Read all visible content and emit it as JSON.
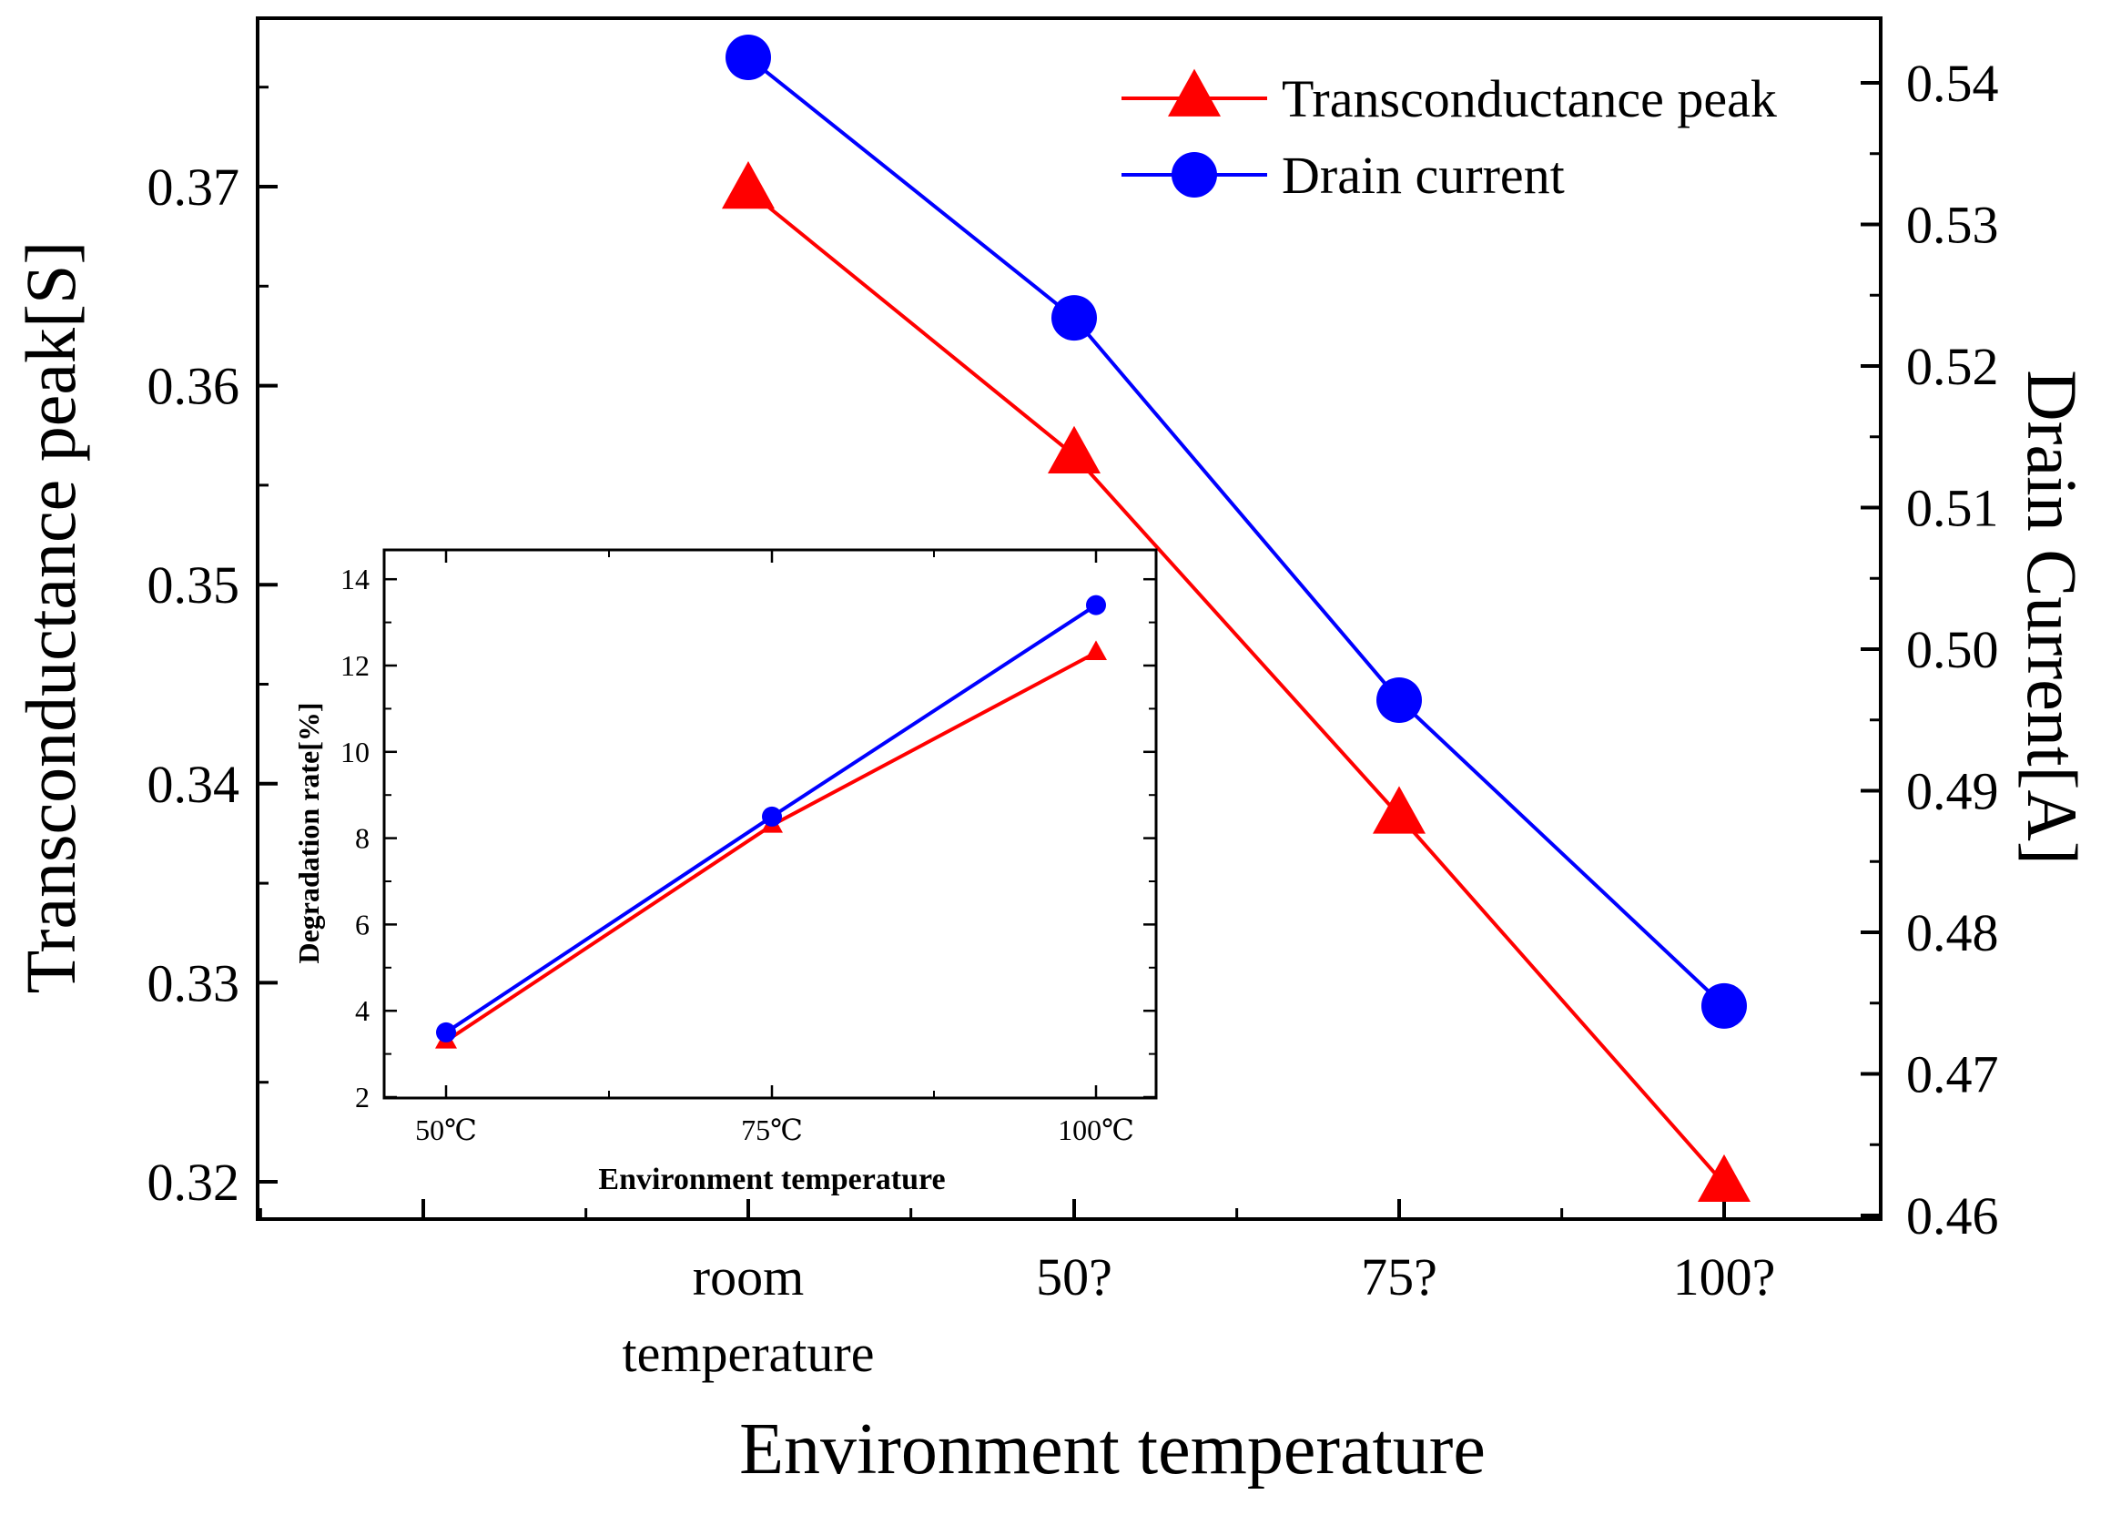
{
  "chart_data": [
    {
      "type": "line",
      "role": "main",
      "categories": [
        "room temperature",
        "50?",
        "75?",
        "100?"
      ],
      "xlabel": "Environment temperature",
      "ylabel_left": "Transconductance peak[S]",
      "ylabel_right": "Drain Current[A]",
      "ylim_left": [
        0.318,
        0.3807
      ],
      "ylim_right": [
        0.46,
        0.5475
      ],
      "yticks_left": [
        "0.32",
        "0.33",
        "0.34",
        "0.35",
        "0.36",
        "0.37"
      ],
      "yticks_right": [
        "0.46",
        "0.47",
        "0.48",
        "0.49",
        "0.50",
        "0.51",
        "0.52",
        "0.53",
        "0.54"
      ],
      "grid": false,
      "legend_position": "top-right",
      "series": [
        {
          "name": "Transconductance peak",
          "axis": "left",
          "marker": "triangle",
          "color": "#ff0000",
          "values": [
            0.3698,
            0.3565,
            0.3384,
            0.3199
          ]
        },
        {
          "name": "Drain current",
          "axis": "right",
          "marker": "circle",
          "color": "#0000ff",
          "values": [
            0.5418,
            0.5234,
            0.4964,
            0.4748
          ]
        }
      ]
    },
    {
      "type": "line",
      "role": "inset",
      "categories": [
        "50℃",
        "75℃",
        "100℃"
      ],
      "xlabel": "Environment temperature",
      "ylabel": "Degradation rate[%]",
      "ylim": [
        2,
        15
      ],
      "yticks": [
        "2",
        "4",
        "6",
        "8",
        "10",
        "12",
        "14"
      ],
      "grid": false,
      "series": [
        {
          "name": "Transconductance peak",
          "marker": "triangle",
          "color": "#ff0000",
          "values": [
            3.3,
            8.3,
            12.3
          ]
        },
        {
          "name": "Drain current",
          "marker": "circle",
          "color": "#0000ff",
          "values": [
            3.5,
            8.5,
            13.4
          ]
        }
      ]
    }
  ]
}
